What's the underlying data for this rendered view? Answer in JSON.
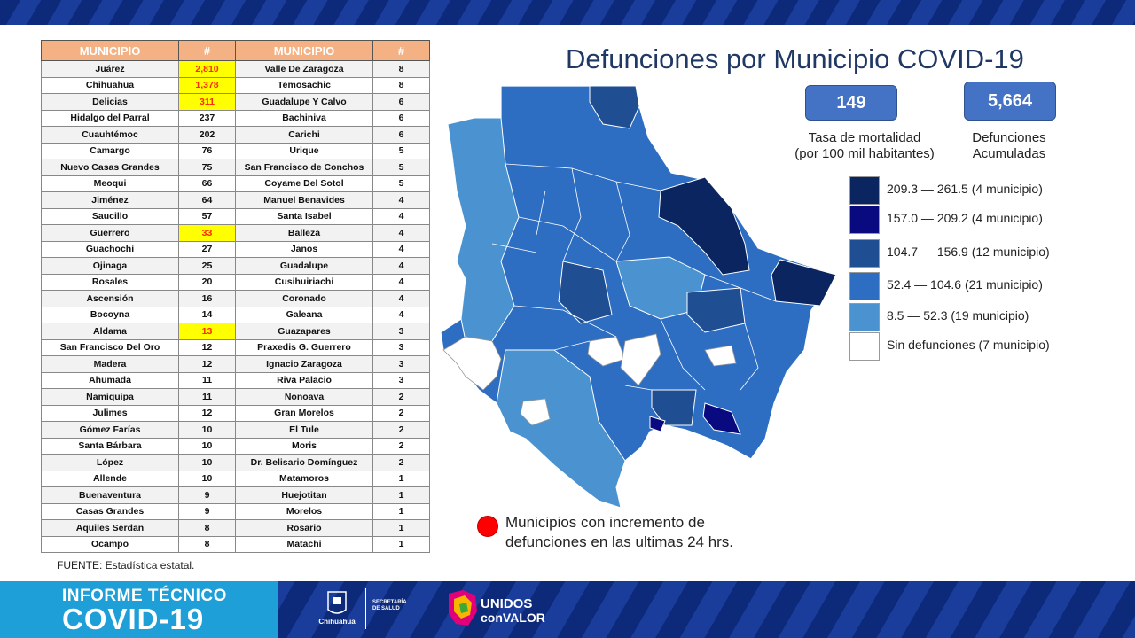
{
  "title": "Defunciones por Municipio COVID-19",
  "table": {
    "headers": [
      "MUNICIPIO",
      "#",
      "MUNICIPIO",
      "#"
    ],
    "rows": [
      {
        "m1": "Juárez",
        "n1": "2,810",
        "m2": "Valle De Zaragoza",
        "n2": "8",
        "hl": true
      },
      {
        "m1": "Chihuahua",
        "n1": "1,378",
        "m2": "Temosachic",
        "n2": "8",
        "hl": true
      },
      {
        "m1": "Delicias",
        "n1": "311",
        "m2": "Guadalupe Y Calvo",
        "n2": "6",
        "hl": true
      },
      {
        "m1": "Hidalgo del Parral",
        "n1": "237",
        "m2": "Bachiniva",
        "n2": "6",
        "hl": false
      },
      {
        "m1": "Cuauhtémoc",
        "n1": "202",
        "m2": "Carichi",
        "n2": "6",
        "hl": false
      },
      {
        "m1": "Camargo",
        "n1": "76",
        "m2": "Urique",
        "n2": "5",
        "hl": false
      },
      {
        "m1": "Nuevo Casas Grandes",
        "n1": "75",
        "m2": "San Francisco de Conchos",
        "n2": "5",
        "hl": false
      },
      {
        "m1": "Meoqui",
        "n1": "66",
        "m2": "Coyame Del Sotol",
        "n2": "5",
        "hl": false
      },
      {
        "m1": "Jiménez",
        "n1": "64",
        "m2": "Manuel Benavides",
        "n2": "4",
        "hl": false
      },
      {
        "m1": "Saucillo",
        "n1": "57",
        "m2": "Santa Isabel",
        "n2": "4",
        "hl": false
      },
      {
        "m1": "Guerrero",
        "n1": "33",
        "m2": "Balleza",
        "n2": "4",
        "hl": true
      },
      {
        "m1": "Guachochi",
        "n1": "27",
        "m2": "Janos",
        "n2": "4",
        "hl": false
      },
      {
        "m1": "Ojinaga",
        "n1": "25",
        "m2": "Guadalupe",
        "n2": "4",
        "hl": false
      },
      {
        "m1": "Rosales",
        "n1": "20",
        "m2": "Cusihuiriachi",
        "n2": "4",
        "hl": false
      },
      {
        "m1": "Ascensión",
        "n1": "16",
        "m2": "Coronado",
        "n2": "4",
        "hl": false
      },
      {
        "m1": "Bocoyna",
        "n1": "14",
        "m2": "Galeana",
        "n2": "4",
        "hl": false
      },
      {
        "m1": "Aldama",
        "n1": "13",
        "m2": "Guazapares",
        "n2": "3",
        "hl": true
      },
      {
        "m1": "San Francisco Del Oro",
        "n1": "12",
        "m2": "Praxedis G. Guerrero",
        "n2": "3",
        "hl": false
      },
      {
        "m1": "Madera",
        "n1": "12",
        "m2": "Ignacio Zaragoza",
        "n2": "3",
        "hl": false
      },
      {
        "m1": "Ahumada",
        "n1": "11",
        "m2": "Riva Palacio",
        "n2": "3",
        "hl": false
      },
      {
        "m1": "Namiquipa",
        "n1": "11",
        "m2": "Nonoava",
        "n2": "2",
        "hl": false
      },
      {
        "m1": "Julimes",
        "n1": "12",
        "m2": "Gran Morelos",
        "n2": "2",
        "hl": false
      },
      {
        "m1": "Gómez Farías",
        "n1": "10",
        "m2": "El Tule",
        "n2": "2",
        "hl": false
      },
      {
        "m1": "Santa Bárbara",
        "n1": "10",
        "m2": "Moris",
        "n2": "2",
        "hl": false
      },
      {
        "m1": "López",
        "n1": "10",
        "m2": "Dr. Belisario Domínguez",
        "n2": "2",
        "hl": false
      },
      {
        "m1": "Allende",
        "n1": "10",
        "m2": "Matamoros",
        "n2": "1",
        "hl": false
      },
      {
        "m1": "Buenaventura",
        "n1": "9",
        "m2": "Huejotitan",
        "n2": "1",
        "hl": false
      },
      {
        "m1": "Casas Grandes",
        "n1": "9",
        "m2": "Morelos",
        "n2": "1",
        "hl": false
      },
      {
        "m1": "Aquiles Serdan",
        "n1": "8",
        "m2": "Rosario",
        "n2": "1",
        "hl": false
      },
      {
        "m1": "Ocampo",
        "n1": "8",
        "m2": "Matachi",
        "n2": "1",
        "hl": false
      }
    ]
  },
  "source": "FUENTE:  Estadística estatal.",
  "kpis": {
    "mortality_value": "149",
    "mortality_label_1": "Tasa de mortalidad",
    "mortality_label_2": "(por 100 mil habitantes)",
    "deaths_value": "5,664",
    "deaths_label_1": "Defunciones",
    "deaths_label_2": "Acumuladas"
  },
  "legend": [
    {
      "label": "209.3 — 261.5 (4 municipio)",
      "color": "#0b2560"
    },
    {
      "label": "157.0 — 209.2 (4 municipio)",
      "color": "#0a0a80"
    },
    {
      "label": "104.7 — 156.9 (12 municipio)",
      "color": "#1f4e93"
    },
    {
      "label": "52.4 — 104.6 (21 municipio)",
      "color": "#2e6ec2"
    },
    {
      "label": "8.5 — 52.3 (19 municipio)",
      "color": "#4a93d0"
    },
    {
      "label": "Sin defunciones (7 municipio)",
      "color": "#ffffff"
    }
  ],
  "note": "Municipios con incremento de defunciones en las ultimas 24 hrs.",
  "footer": {
    "brand_line1": "INFORME TÉCNICO",
    "brand_line2": "COVID-19",
    "gov_name": "Chihuahua",
    "secretaria": "SECRETARÍA DE SALUD",
    "unidos_1": "UNIDOS",
    "unidos_2": "conVALOR"
  }
}
